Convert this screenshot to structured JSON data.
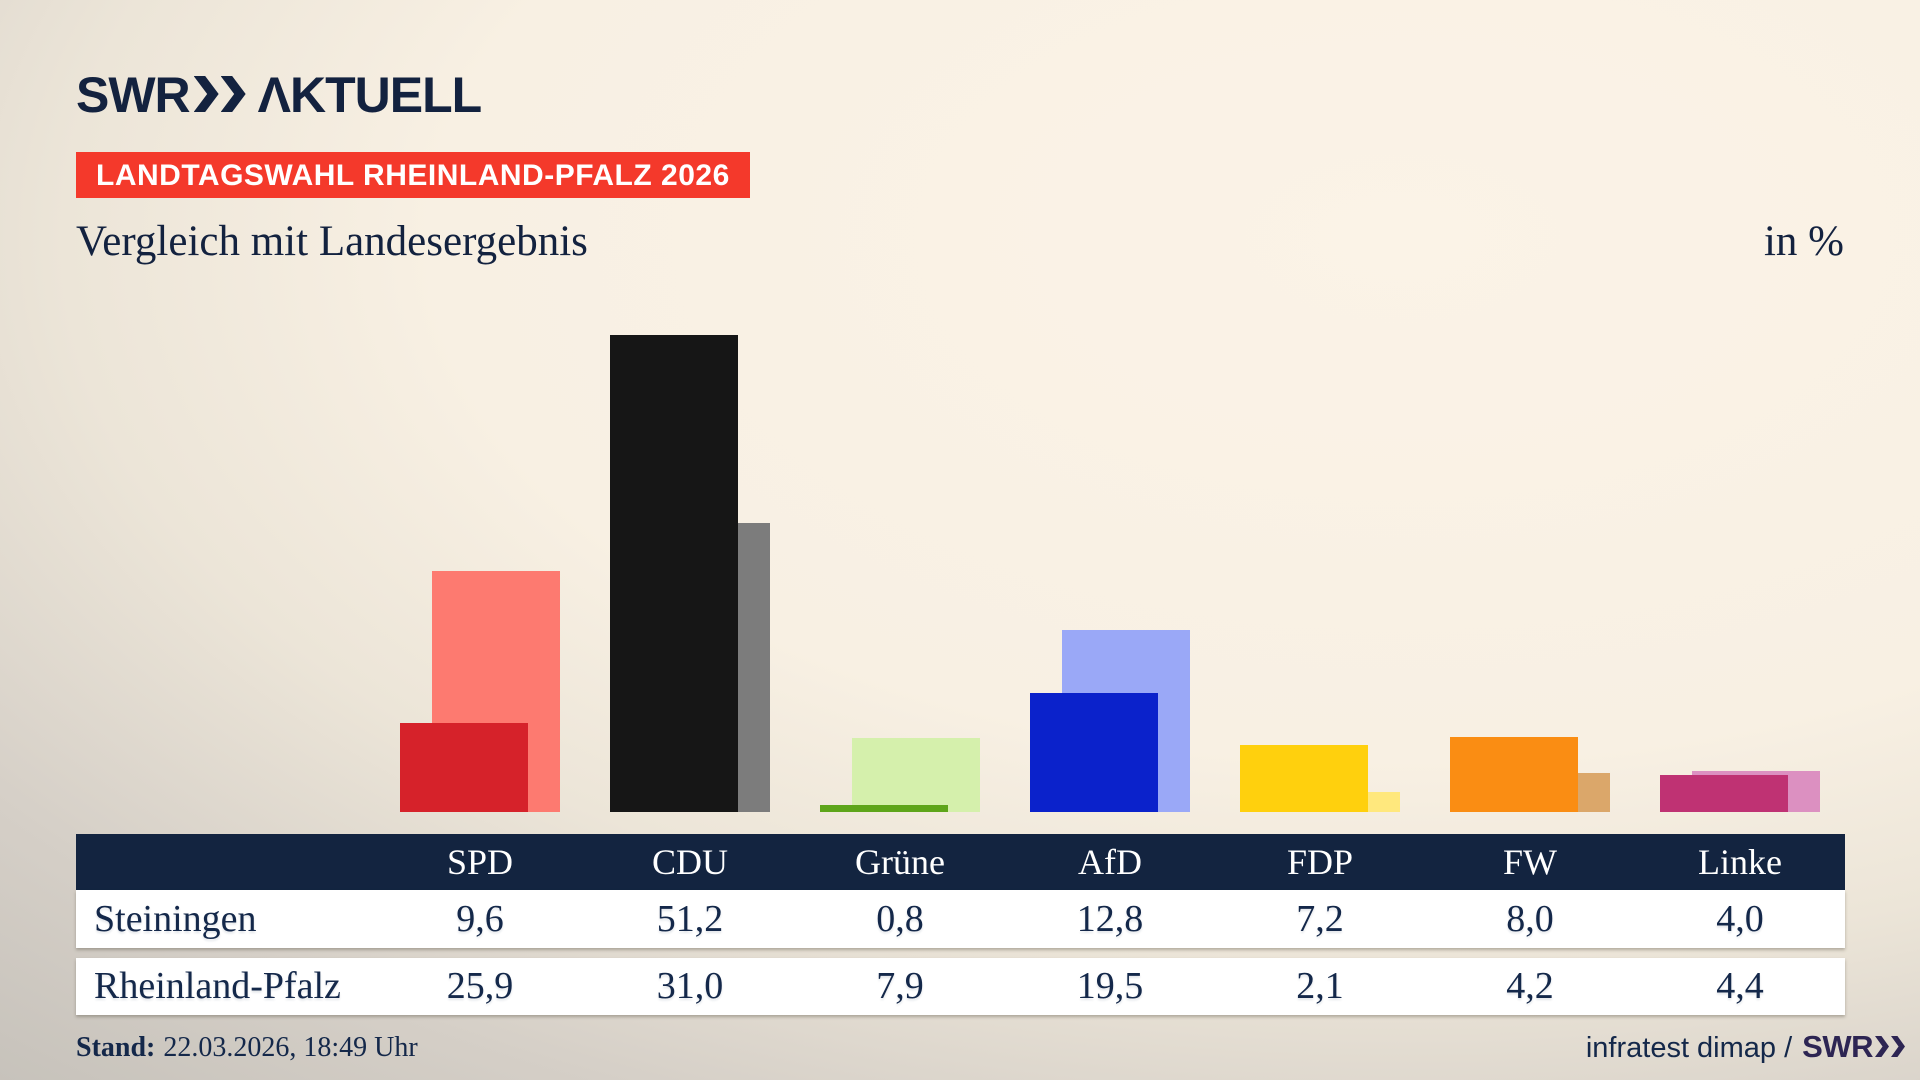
{
  "brand": {
    "swr": "SWR",
    "aktuell": "ΛKTUELL",
    "color": "#13223f"
  },
  "badge": {
    "label": "LANDTAGSWAHL RHEINLAND-PFALZ 2026",
    "bg": "#f4392b"
  },
  "title": "Vergleich mit Landesergebnis",
  "unit_label": "in %",
  "chart_data": {
    "type": "bar",
    "title": "Vergleich mit Landesergebnis",
    "unit": "in %",
    "categories": [
      "SPD",
      "CDU",
      "Grüne",
      "AfD",
      "FDP",
      "FW",
      "Linke"
    ],
    "series": [
      {
        "name": "Steiningen",
        "role": "front",
        "values": [
          9.6,
          51.2,
          0.8,
          12.8,
          7.2,
          8.0,
          4.0
        ]
      },
      {
        "name": "Rheinland-Pfalz",
        "role": "behind",
        "values": [
          25.9,
          31.0,
          7.9,
          19.5,
          2.1,
          4.2,
          4.4
        ]
      }
    ],
    "party_colors": [
      {
        "party": "SPD",
        "front": "#d6222a",
        "behind": "#fd7a70"
      },
      {
        "party": "CDU",
        "front": "#161616",
        "behind": "#7c7c7c"
      },
      {
        "party": "Grüne",
        "front": "#5ea51a",
        "behind": "#d5f0ac"
      },
      {
        "party": "AfD",
        "front": "#0b22cb",
        "behind": "#9aa8f7"
      },
      {
        "party": "FDP",
        "front": "#ffd00d",
        "behind": "#ffe87d"
      },
      {
        "party": "FW",
        "front": "#fa8d13",
        "behind": "#dba76a"
      },
      {
        "party": "Linke",
        "front": "#bf3273",
        "behind": "#dc90c1"
      }
    ],
    "value_axis": {
      "visible": false,
      "baseline": 0,
      "max_plotted_value": 51.2
    },
    "grid": false,
    "legend": "values-shown-in-table-below"
  },
  "table": {
    "corner_label": "",
    "columns": [
      "SPD",
      "CDU",
      "Grüne",
      "AfD",
      "FDP",
      "FW",
      "Linke"
    ],
    "row_labels": [
      "Steiningen",
      "Rheinland-Pfalz"
    ],
    "rows": [
      [
        "9,6",
        "51,2",
        "0,8",
        "12,8",
        "7,2",
        "8,0",
        "4,0"
      ],
      [
        "25,9",
        "31,0",
        "7,9",
        "19,5",
        "2,1",
        "4,2",
        "4,4"
      ]
    ],
    "header_bg": "#132440",
    "row_bg": "#ffffff",
    "text_color": "#14284a"
  },
  "footer": {
    "stand_label": "Stand:",
    "stand_value": "22.03.2026, 18:49 Uhr",
    "source_text": "infratest dimap /",
    "source_brand": "SWR"
  }
}
